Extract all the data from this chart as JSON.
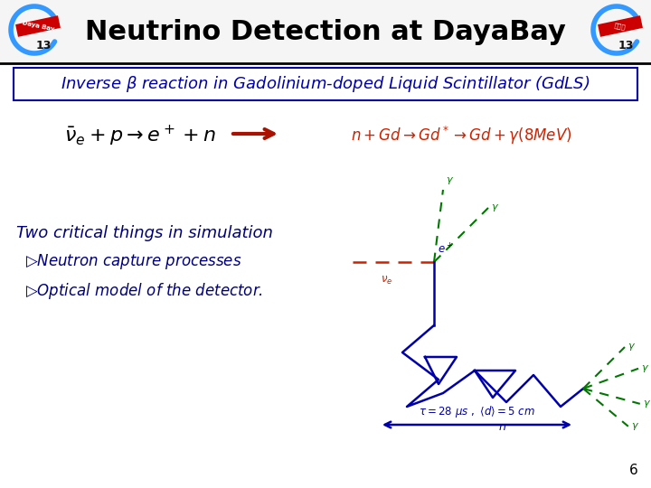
{
  "title": "Neutrino Detection at DayaBay",
  "title_fontsize": 22,
  "title_color": "#000000",
  "bg_color": "#ffffff",
  "header_line_color": "#000000",
  "slide_number": "6",
  "box_text": "Inverse $\\beta$ reaction in Gadolinium-doped Liquid Scintillator (GdLS)",
  "box_color": "#0000aa",
  "eq1": "$\\bar{\\nu}_e + p \\rightarrow e^+ + n$",
  "eq2": "$n + Gd \\rightarrow Gd^* \\rightarrow Gd + \\gamma(8MeV)$",
  "eq2_color": "#cc2200",
  "arrow_color": "#aa1100",
  "body_text_color": "#00007a",
  "two_critical": "Two critical things in simulation",
  "bullet1": "$\\triangleright$Neutron capture processes",
  "bullet2": "$\\triangleright$Optical model of the detector.",
  "diagram_blue": "#0000aa",
  "diagram_green": "#007700",
  "diagram_red": "#cc2200",
  "logo_blue": "#3399ff",
  "logo_red": "#cc0000"
}
